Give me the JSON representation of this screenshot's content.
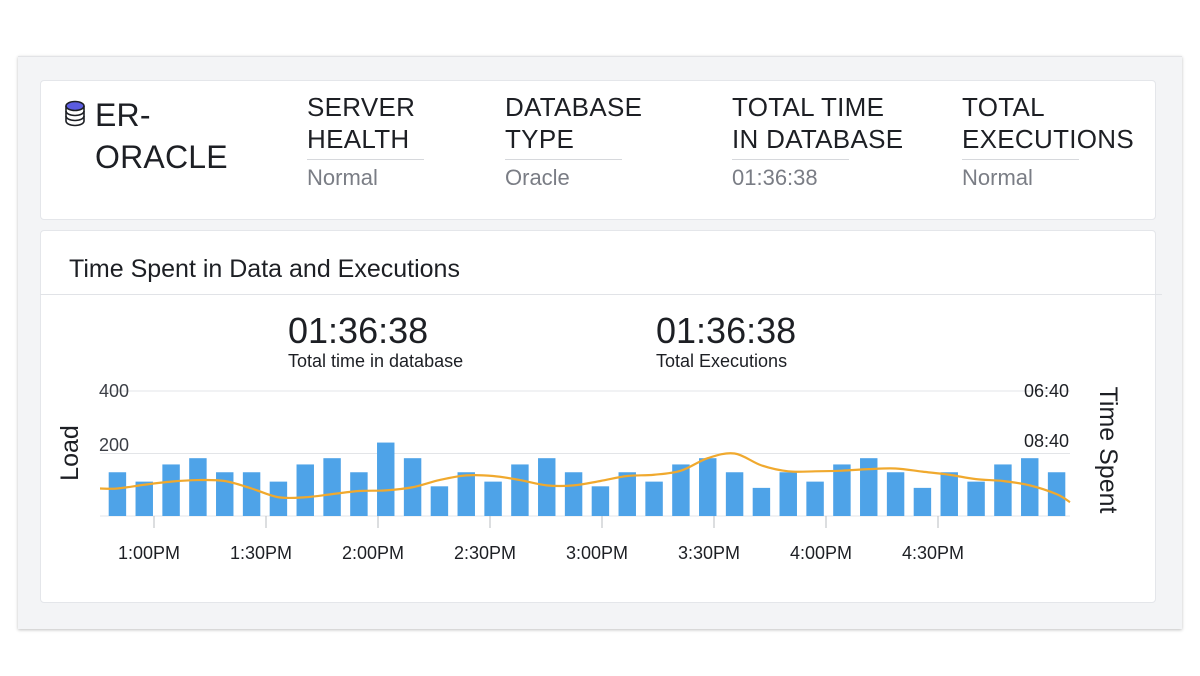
{
  "header": {
    "server_name": "ER-\nORACLE",
    "metrics": [
      {
        "label": "SERVER\nHEALTH",
        "value": "Normal"
      },
      {
        "label": "DATABASE\nTYPE",
        "value": "Oracle"
      },
      {
        "label": "TOTAL TIME\nIN DATABASE",
        "value": "01:36:38"
      },
      {
        "label": "TOTAL\nEXECUTIONS",
        "value": "Normal"
      }
    ]
  },
  "colors": {
    "bar": "#4ea3e8",
    "line": "#f0a92e",
    "icon_top": "#5b5ce0"
  },
  "chart_section": {
    "title": "Time Spent in Data and Executions",
    "stats": [
      {
        "value": "01:36:38",
        "caption": "Total time in database"
      },
      {
        "value": "01:36:38",
        "caption": "Total Executions"
      }
    ]
  },
  "chart_data": {
    "type": "bar",
    "ylabel": "Load",
    "y2label": "Time Spent",
    "ylim": [
      0,
      400
    ],
    "yticks": [
      "400",
      "200"
    ],
    "y2ticks": [
      "06:40",
      "08:40"
    ],
    "x_tick_labels": [
      "1:00PM",
      "1:30PM",
      "2:00PM",
      "2:30PM",
      "3:00PM",
      "3:30PM",
      "4:00PM",
      "4:30PM"
    ],
    "grid": true,
    "series": [
      {
        "kind": "bar",
        "values": [
          140,
          110,
          165,
          185,
          140,
          140,
          110,
          165,
          185,
          140,
          235,
          185,
          95,
          140,
          110,
          165,
          185,
          140,
          95,
          140,
          110,
          165,
          185,
          140,
          90,
          140,
          110,
          165,
          185,
          140,
          90,
          140,
          110,
          165,
          185,
          140
        ]
      },
      {
        "kind": "line",
        "values": [
          88,
          100,
          110,
          115,
          112,
          88,
          60,
          60,
          70,
          80,
          82,
          92,
          115,
          130,
          128,
          115,
          98,
          98,
          112,
          128,
          132,
          145,
          185,
          200,
          162,
          143,
          143,
          145,
          150,
          152,
          142,
          132,
          118,
          112,
          98,
          70
        ]
      }
    ]
  }
}
